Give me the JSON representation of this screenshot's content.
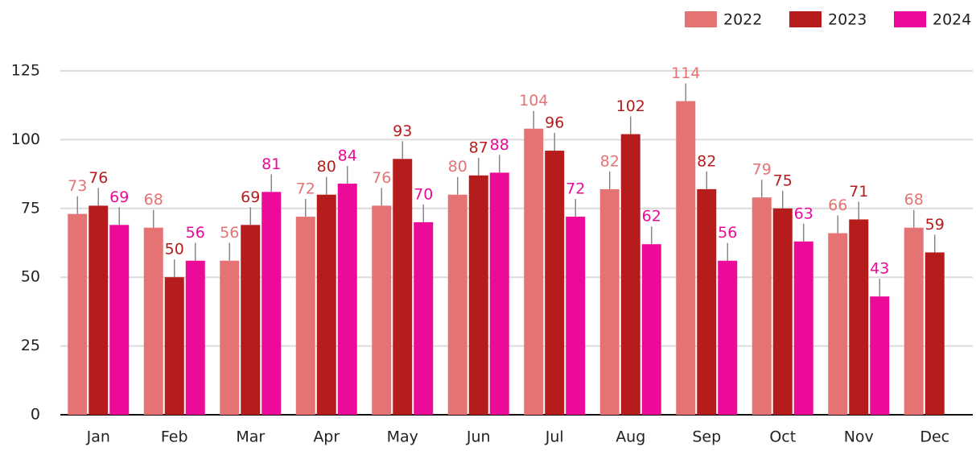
{
  "chart_data": {
    "type": "bar",
    "categories": [
      "Jan",
      "Feb",
      "Mar",
      "Apr",
      "May",
      "Jun",
      "Jul",
      "Aug",
      "Sep",
      "Oct",
      "Nov",
      "Dec"
    ],
    "series": [
      {
        "name": "2022",
        "color": "#e57373",
        "values": [
          73,
          68,
          56,
          72,
          76,
          80,
          104,
          82,
          114,
          79,
          66,
          68
        ]
      },
      {
        "name": "2023",
        "color": "#b71c1c",
        "values": [
          76,
          50,
          69,
          80,
          93,
          87,
          96,
          102,
          82,
          75,
          71,
          59
        ]
      },
      {
        "name": "2024",
        "color": "#ec0a99",
        "values": [
          69,
          56,
          81,
          84,
          70,
          88,
          72,
          62,
          56,
          63,
          43,
          null
        ]
      }
    ],
    "ylim": [
      0,
      125
    ],
    "yticks": [
      0,
      25,
      50,
      75,
      100,
      125
    ],
    "grid": true,
    "legend": "top-right"
  }
}
